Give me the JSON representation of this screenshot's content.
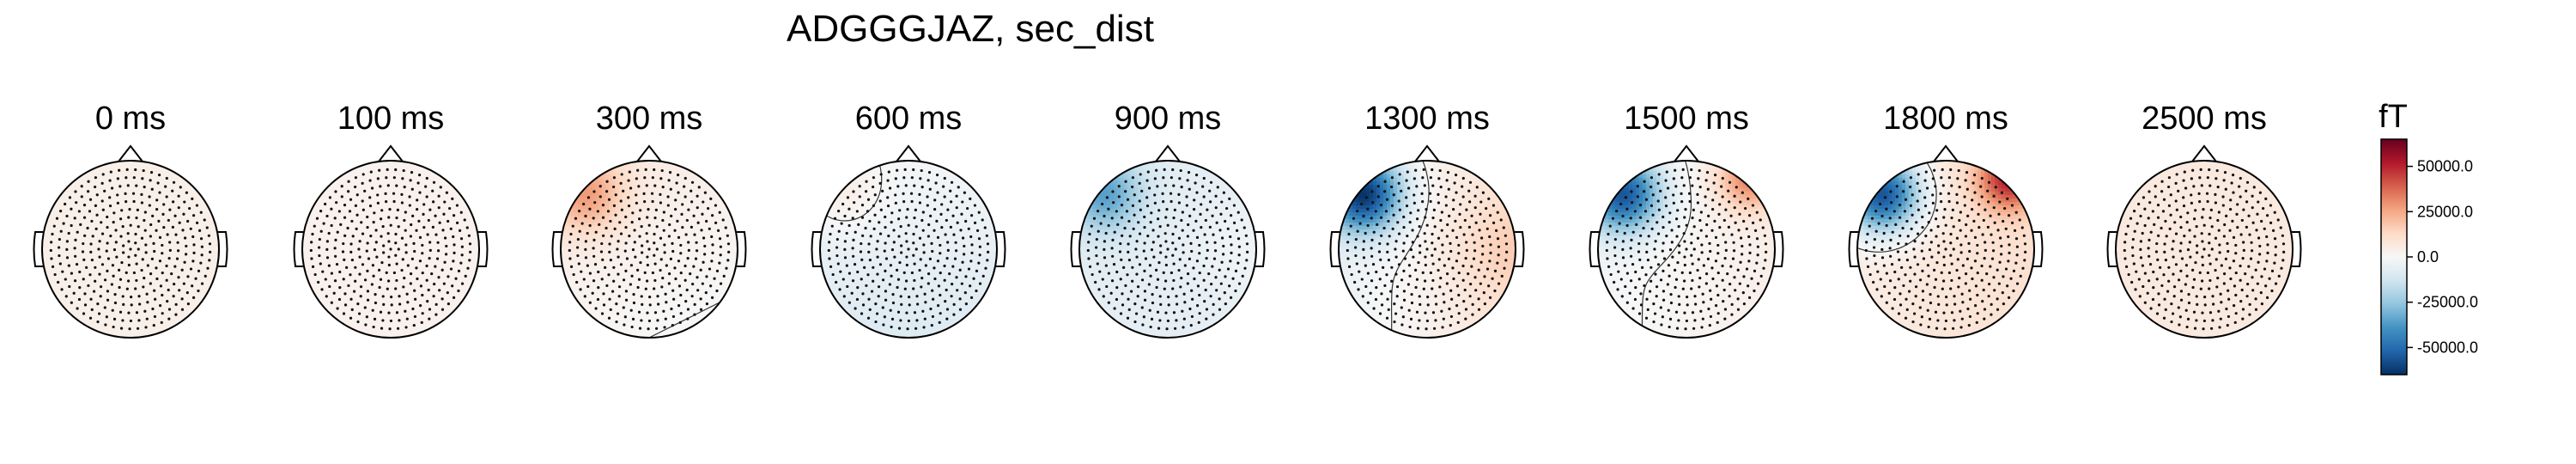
{
  "figure": {
    "title": "ADGGGJAZ, sec_dist"
  },
  "panels": [
    {
      "label": "0 ms",
      "field": {
        "gx": 0.0,
        "gy": 0.0,
        "base": 0.06,
        "left_top": 0.0,
        "right_top": 0.0,
        "right": 0.0,
        "curv": 0.0
      }
    },
    {
      "label": "100 ms",
      "field": {
        "gx": 0.0,
        "gy": 0.0,
        "base": 0.04,
        "left_top": 0.0,
        "right_top": 0.0,
        "right": 0.0,
        "curv": 0.0
      }
    },
    {
      "label": "300 ms",
      "field": {
        "gx": -0.02,
        "gy": -0.04,
        "base": 0.04,
        "left_top": 0.35,
        "right_top": 0.0,
        "right": 0.0,
        "curv": 0.0
      }
    },
    {
      "label": "600 ms",
      "field": {
        "gx": 0.0,
        "gy": -0.06,
        "base": -0.08,
        "left_top": 0.1,
        "right_top": 0.0,
        "right": 0.0,
        "curv": 0.0
      }
    },
    {
      "label": "900 ms",
      "field": {
        "gx": 0.0,
        "gy": 0.0,
        "base": -0.1,
        "left_top": -0.45,
        "right_top": 0.0,
        "right": 0.06,
        "curv": 0.0
      }
    },
    {
      "label": "1300 ms",
      "field": {
        "gx": 0.1,
        "gy": 0.0,
        "base": 0.04,
        "left_top": -0.95,
        "right_top": 0.0,
        "right": 0.12,
        "curv": 0.0
      }
    },
    {
      "label": "1500 ms",
      "field": {
        "gx": 0.04,
        "gy": 0.0,
        "base": 0.02,
        "left_top": -0.85,
        "right_top": 0.45,
        "right": 0.0,
        "curv": 0.0
      }
    },
    {
      "label": "1800 ms",
      "field": {
        "gx": 0.04,
        "gy": 0.0,
        "base": 0.12,
        "left_top": -0.95,
        "right_top": 0.65,
        "right": 0.0,
        "curv": 0.0
      }
    },
    {
      "label": "2500 ms",
      "field": {
        "gx": 0.0,
        "gy": 0.0,
        "base": 0.1,
        "left_top": 0.0,
        "right_top": 0.0,
        "right": 0.0,
        "curv": 0.0
      }
    }
  ],
  "colorbar": {
    "title": "fT",
    "min": -65000,
    "max": 65000,
    "ticks": [
      50000,
      25000,
      0,
      -25000,
      -50000
    ],
    "tick_labels": [
      "50000.0",
      "25000.0",
      "0.0",
      "-25000.0",
      "-50000.0"
    ],
    "colormap": "RdBu_r",
    "colors": [
      "#053061",
      "#2166ac",
      "#4393c3",
      "#92c5de",
      "#d1e5f0",
      "#f7f7f7",
      "#fddbc7",
      "#f4a582",
      "#d6604d",
      "#b2182b",
      "#67001f"
    ]
  }
}
